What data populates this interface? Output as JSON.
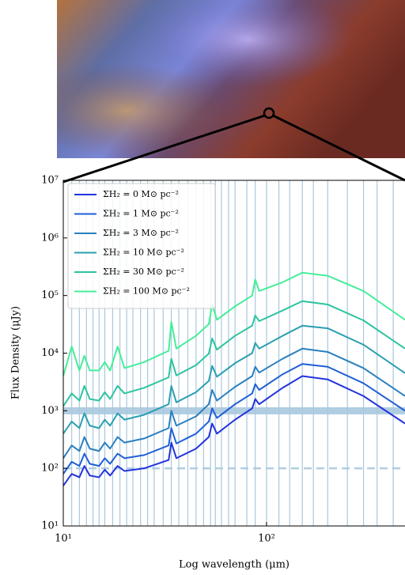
{
  "chart_data": {
    "type": "line",
    "x_label": "Log wavelength (μm)",
    "y_label": "Flux Density (μJy)",
    "log_x": true,
    "log_y": true,
    "xlim": [
      10,
      480
    ],
    "ylim": [
      10,
      10000000
    ],
    "xticks": [
      {
        "value": 10,
        "label": "10¹"
      },
      {
        "value": 100,
        "label": "10²"
      }
    ],
    "yticks": [
      {
        "value": 10,
        "label": "10¹"
      },
      {
        "value": 100,
        "label": "10²"
      },
      {
        "value": 1000,
        "label": "10³"
      },
      {
        "value": 10000,
        "label": "10⁴"
      },
      {
        "value": 100000,
        "label": "10⁵"
      },
      {
        "value": 1000000,
        "label": "10⁶"
      },
      {
        "value": 10000000,
        "label": "10⁷"
      }
    ],
    "vlines": [
      11,
      12,
      13,
      14,
      15,
      16,
      17.5,
      19,
      20.5,
      22,
      24,
      26,
      28,
      31,
      34,
      37,
      41,
      45,
      49,
      53,
      56,
      60,
      65,
      70,
      80,
      88,
      100,
      115,
      130,
      150,
      170,
      200,
      250,
      300,
      350,
      420
    ],
    "vline_color": "#a9c8de",
    "hlines": [
      1000,
      100
    ],
    "hline_styles": [
      "solid",
      "dashed"
    ],
    "hline_color": "#a9c8de",
    "legend": "upper left",
    "x": [
      10,
      11,
      12,
      12.7,
      13.5,
      15,
      16,
      17,
      18.5,
      20,
      25,
      33,
      34,
      36,
      45,
      52,
      54,
      57,
      70,
      85,
      88,
      92,
      120,
      150,
      200,
      300,
      480
    ],
    "series": [
      {
        "name": "ΣH₂ = 0 M⊙ pc⁻²",
        "color": "#2233dd",
        "values": [
          50,
          80,
          70,
          110,
          75,
          70,
          95,
          75,
          110,
          90,
          100,
          140,
          280,
          150,
          220,
          350,
          600,
          400,
          700,
          1100,
          1600,
          1300,
          2500,
          4000,
          3500,
          1800,
          600
        ]
      },
      {
        "name": "ΣH₂ = 1 M⊙ pc⁻²",
        "color": "#1f5fd6",
        "values": [
          80,
          130,
          110,
          180,
          120,
          110,
          150,
          120,
          180,
          150,
          170,
          250,
          500,
          270,
          400,
          650,
          1100,
          750,
          1300,
          2000,
          2900,
          2300,
          4300,
          6500,
          5800,
          3000,
          1000
        ]
      },
      {
        "name": "ΣH₂ = 3 M⊙ pc⁻²",
        "color": "#2a7fbf",
        "values": [
          150,
          250,
          200,
          350,
          220,
          200,
          280,
          220,
          350,
          280,
          330,
          500,
          1000,
          550,
          800,
          1300,
          2300,
          1500,
          2600,
          4000,
          5800,
          4600,
          8000,
          12000,
          10500,
          5500,
          1800
        ]
      },
      {
        "name": "ΣH₂ = 10 M⊙ pc⁻²",
        "color": "#2a9fb0",
        "values": [
          400,
          650,
          500,
          900,
          550,
          500,
          700,
          550,
          900,
          700,
          850,
          1300,
          2700,
          1400,
          2100,
          3300,
          6000,
          3900,
          6700,
          10000,
          15000,
          12000,
          20000,
          30000,
          27000,
          14000,
          4500
        ]
      },
      {
        "name": "ΣH₂ = 30 M⊙ pc⁻²",
        "color": "#2cc4a0",
        "values": [
          1200,
          2000,
          1500,
          2700,
          1600,
          1500,
          2100,
          1600,
          2700,
          2000,
          2500,
          3800,
          8000,
          4100,
          6200,
          9800,
          18000,
          11500,
          20000,
          30000,
          45000,
          36000,
          55000,
          80000,
          70000,
          37000,
          12000
        ]
      },
      {
        "name": "ΣH₂ = 100 M⊙ pc⁻²",
        "color": "#44ee99",
        "values": [
          4000,
          13000,
          5000,
          9000,
          5000,
          5000,
          7000,
          5000,
          13000,
          5500,
          7000,
          11000,
          35000,
          12000,
          20000,
          32000,
          70000,
          38000,
          65000,
          100000,
          190000,
          120000,
          170000,
          250000,
          220000,
          120000,
          38000
        ]
      }
    ]
  }
}
